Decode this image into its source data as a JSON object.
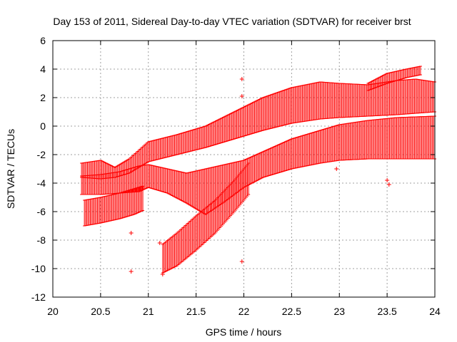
{
  "chart_data": {
    "type": "scatter",
    "title": "Day 153 of 2011, Sidereal Day-to-day VTEC variation (SDTVAR) for receiver brst",
    "xlabel": "GPS time / hours",
    "ylabel": "SDTVAR / TECUs",
    "xlim": [
      20,
      24
    ],
    "ylim": [
      -12,
      6
    ],
    "xticks": [
      20,
      20.5,
      21,
      21.5,
      22,
      22.5,
      23,
      23.5,
      24
    ],
    "yticks": [
      -12,
      -10,
      -8,
      -6,
      -4,
      -2,
      0,
      2,
      4,
      6
    ],
    "xtick_labels": [
      "20",
      "20.5",
      "21",
      "21.5",
      "22",
      "22.5",
      "23",
      "23.5",
      "24"
    ],
    "ytick_labels": [
      "-12",
      "-10",
      "-8",
      "-6",
      "-4",
      "-2",
      "0",
      "2",
      "4",
      "6"
    ],
    "grid": true,
    "series_color": "#ff0000",
    "bands": [
      {
        "name": "upper band",
        "x": [
          20.3,
          20.5,
          20.65,
          20.8,
          21.0,
          21.3,
          21.6,
          21.9,
          22.2,
          22.5,
          22.8,
          23.0,
          23.3,
          23.6,
          23.8,
          24.0
        ],
        "ymin": [
          -3.6,
          -3.7,
          -3.6,
          -3.3,
          -2.5,
          -2.0,
          -1.5,
          -0.9,
          -0.3,
          0.2,
          0.5,
          0.6,
          0.7,
          0.8,
          0.9,
          1.0
        ],
        "ymax": [
          -2.6,
          -2.4,
          -2.9,
          -2.3,
          -1.1,
          -0.6,
          0.0,
          1.0,
          2.0,
          2.7,
          3.1,
          3.0,
          2.9,
          3.2,
          3.3,
          3.1
        ]
      },
      {
        "name": "lower band",
        "x": [
          20.3,
          20.5,
          20.7,
          20.9,
          21.0,
          21.2,
          21.4,
          21.6,
          21.8,
          22.0,
          22.2,
          22.5,
          22.8,
          23.0,
          23.3,
          23.6,
          24.0
        ],
        "ymin": [
          -4.8,
          -4.8,
          -4.7,
          -4.6,
          -4.3,
          -4.7,
          -5.4,
          -6.2,
          -5.3,
          -4.3,
          -3.6,
          -3.0,
          -2.6,
          -2.4,
          -2.3,
          -2.3,
          -2.3
        ],
        "ymax": [
          -3.5,
          -3.4,
          -3.2,
          -2.8,
          -2.7,
          -3.0,
          -3.3,
          -3.0,
          -2.7,
          -2.4,
          -1.8,
          -0.9,
          -0.3,
          0.1,
          0.4,
          0.6,
          0.7
        ]
      },
      {
        "name": "bottom band",
        "x": [
          20.33,
          20.5,
          20.7,
          20.85,
          20.95
        ],
        "ymin": [
          -7.0,
          -6.8,
          -6.5,
          -6.2,
          -5.9
        ],
        "ymax": [
          -5.2,
          -5.0,
          -4.7,
          -4.4,
          -4.2
        ]
      },
      {
        "name": "rising band",
        "x": [
          21.15,
          21.3,
          21.5,
          21.7,
          21.9,
          22.05
        ],
        "ymin": [
          -10.3,
          -9.8,
          -8.7,
          -7.5,
          -6.0,
          -4.8
        ],
        "ymax": [
          -8.3,
          -7.5,
          -6.3,
          -5.2,
          -3.8,
          -2.6
        ]
      }
    ],
    "upper_tail": {
      "x": [
        23.3,
        23.5,
        23.7,
        23.85
      ],
      "ymin": [
        2.5,
        3.0,
        3.4,
        3.6
      ],
      "ymax": [
        3.0,
        3.7,
        4.0,
        4.2
      ]
    },
    "outliers": [
      {
        "x": 20.82,
        "y": -10.2
      },
      {
        "x": 21.15,
        "y": -10.4
      },
      {
        "x": 21.98,
        "y": -9.5
      },
      {
        "x": 21.98,
        "y": 3.3
      },
      {
        "x": 21.98,
        "y": 2.1
      },
      {
        "x": 21.12,
        "y": -8.2
      },
      {
        "x": 20.82,
        "y": -7.5
      },
      {
        "x": 22.97,
        "y": -3.0
      },
      {
        "x": 23.5,
        "y": -3.8
      },
      {
        "x": 23.52,
        "y": -4.1
      }
    ]
  }
}
